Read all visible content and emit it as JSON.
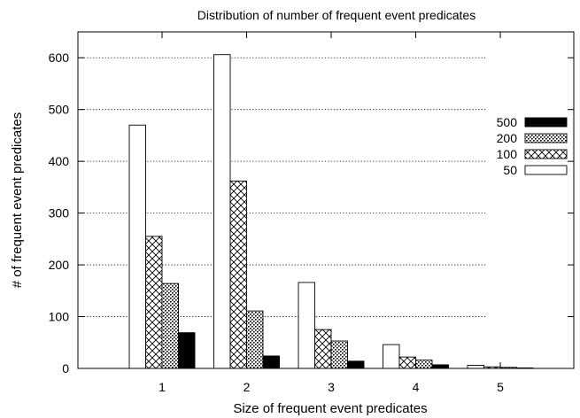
{
  "chart_data": {
    "type": "bar",
    "title": "Distribution of number of frequent event predicates",
    "xlabel": "Size of frequent event predicates",
    "ylabel": "# of frequent event predicates",
    "categories": [
      "1",
      "2",
      "3",
      "4",
      "5"
    ],
    "ylim": [
      0,
      650
    ],
    "yticks": [
      0,
      100,
      200,
      300,
      400,
      500,
      600
    ],
    "grid": true,
    "legend_position": "right",
    "series": [
      {
        "name": "50",
        "pattern": "white",
        "values": [
          470,
          606,
          166,
          46,
          6
        ]
      },
      {
        "name": "100",
        "pattern": "crosshatch",
        "values": [
          255,
          362,
          75,
          22,
          3
        ]
      },
      {
        "name": "200",
        "pattern": "dots",
        "values": [
          164,
          111,
          53,
          16,
          2
        ]
      },
      {
        "name": "500",
        "pattern": "black",
        "values": [
          69,
          24,
          14,
          7,
          1
        ]
      }
    ],
    "legend_order": [
      "500",
      "200",
      "100",
      "50"
    ]
  }
}
